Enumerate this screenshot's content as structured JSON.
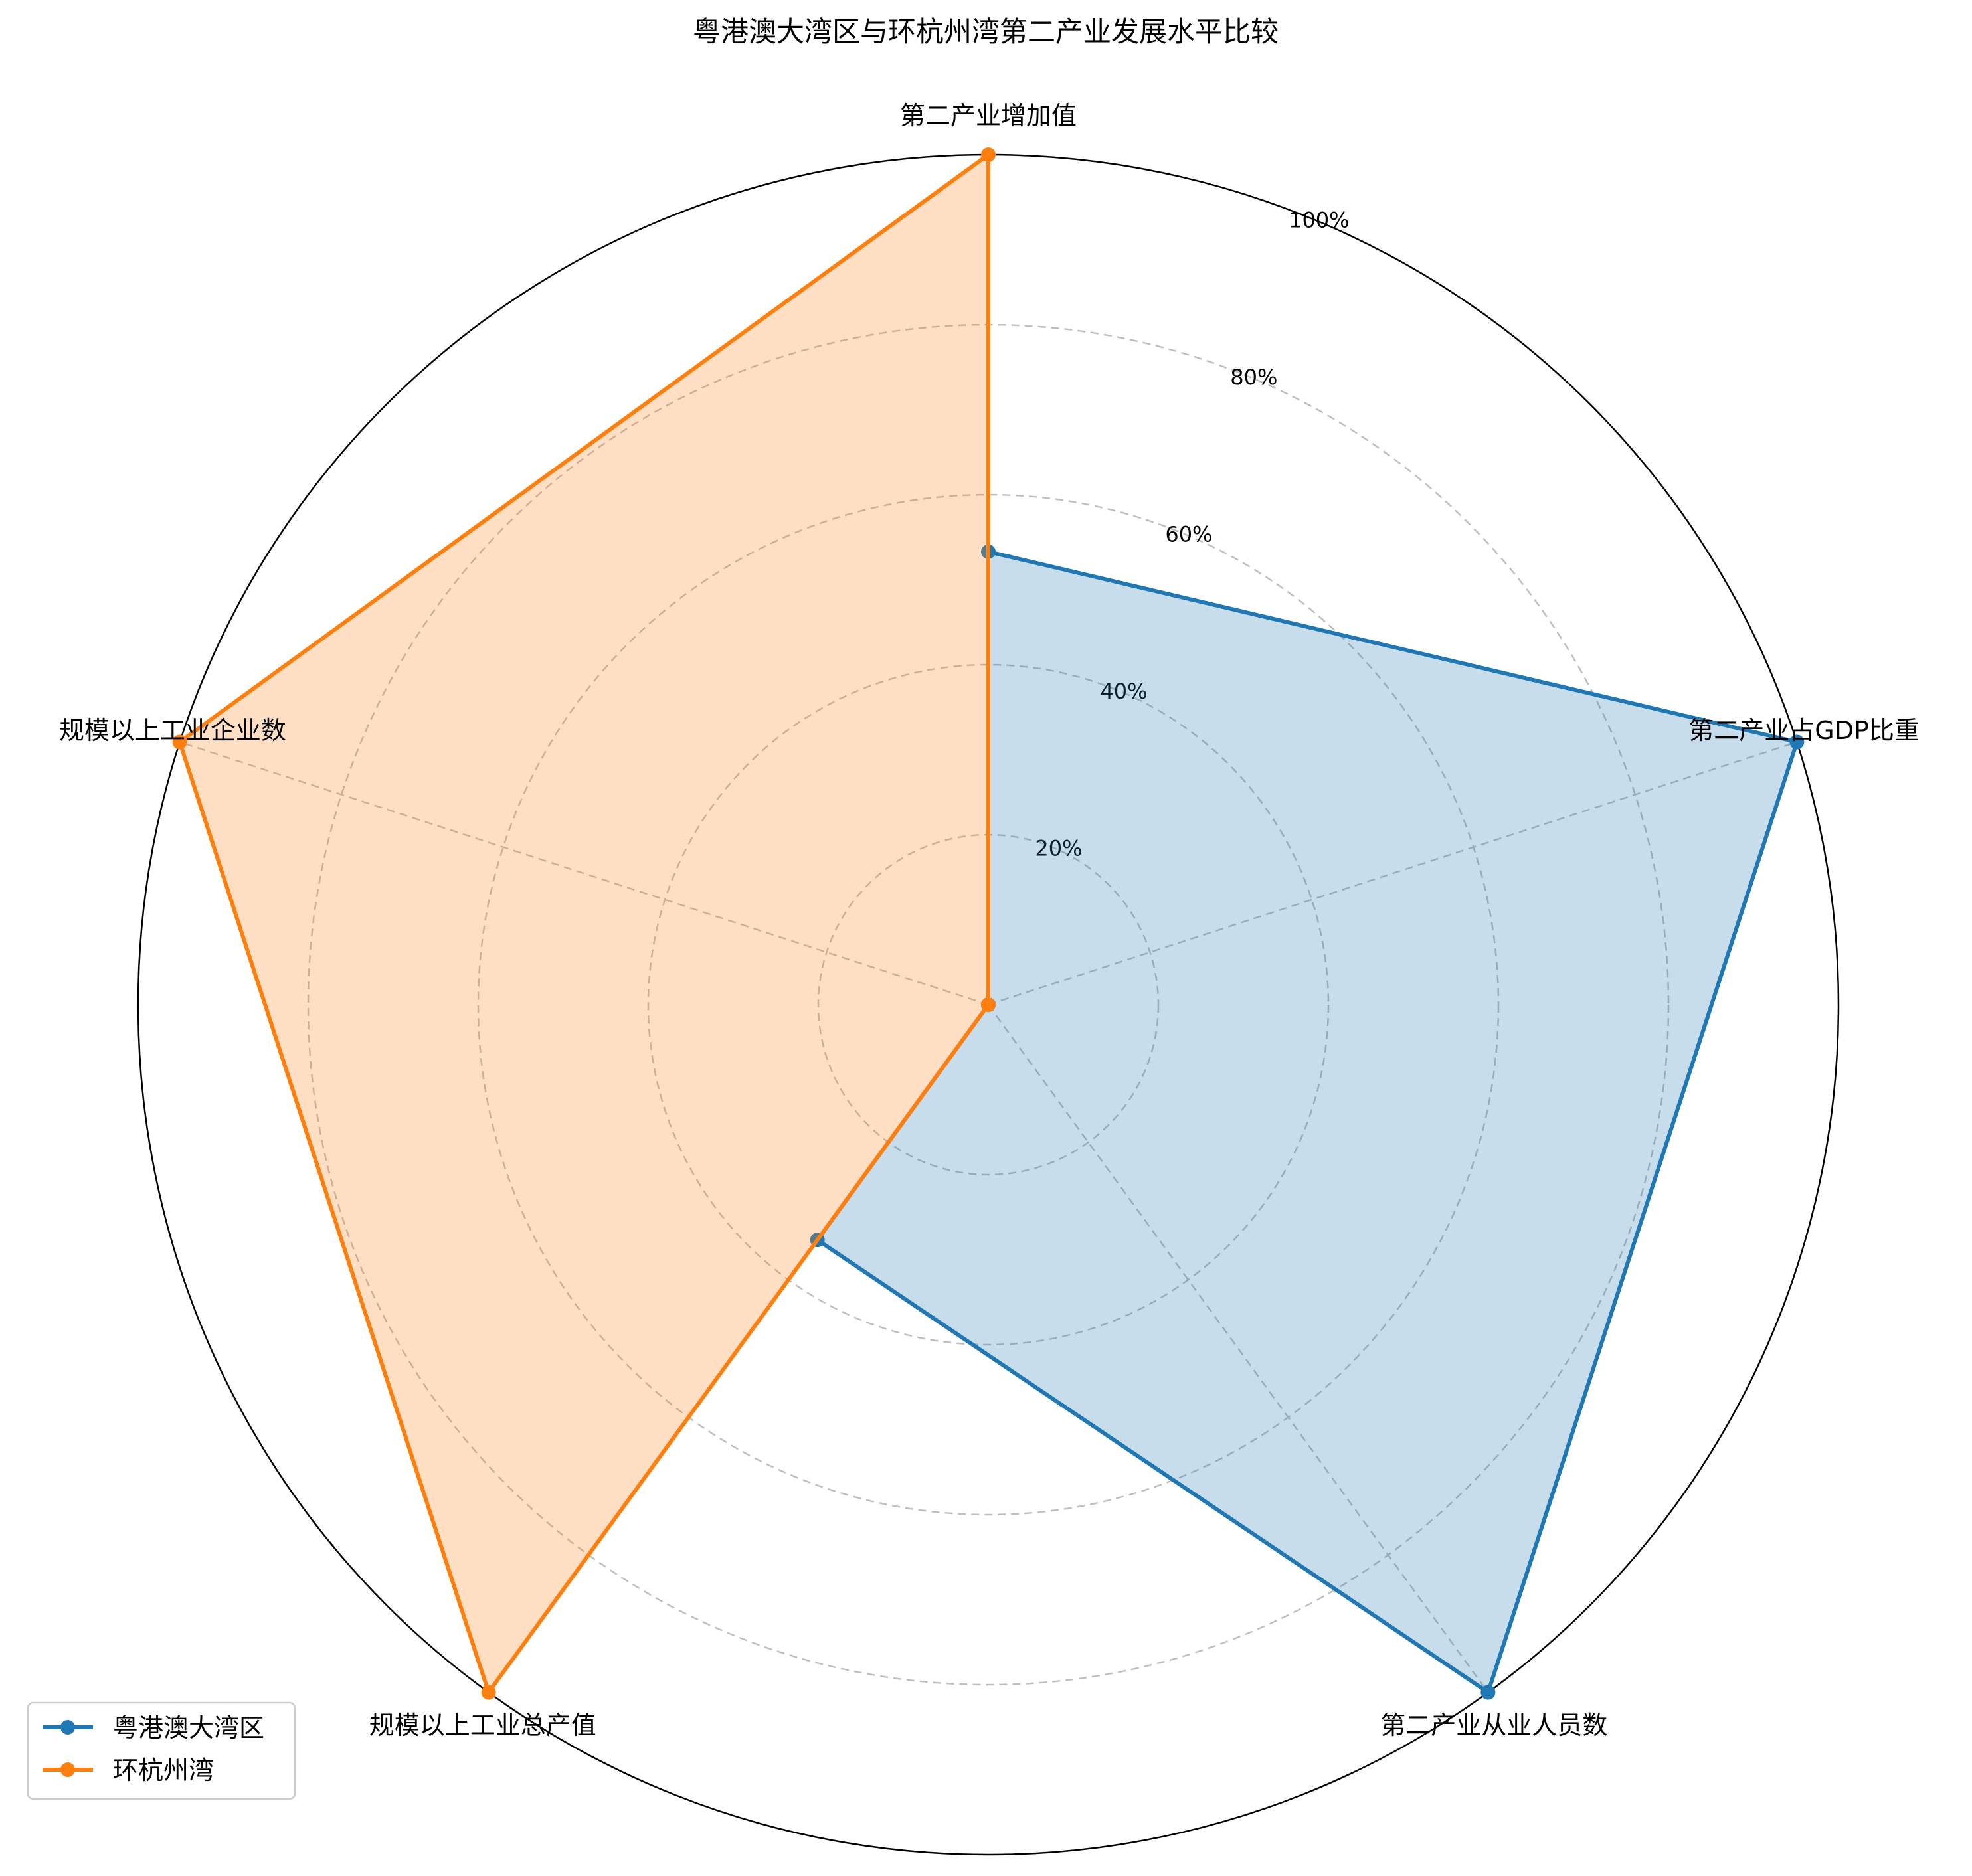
{
  "chart_data": {
    "type": "radar",
    "title": "粤港澳大湾区与环杭州湾第二产业发展水平比较",
    "categories": [
      "第二产业增加值",
      "第二产业占GDP比重",
      "第二产业从业人员数",
      "规模以上工业总产值",
      "规模以上工业企业数"
    ],
    "rlim": [
      0,
      100
    ],
    "r_ticks": [
      20,
      40,
      60,
      80,
      100
    ],
    "r_tick_labels": [
      "20%",
      "40%",
      "60%",
      "80%",
      "100%"
    ],
    "grid": true,
    "legend_position": "lower-left",
    "series": [
      {
        "name": "粤港澳大湾区",
        "color": "#1f77b4",
        "values": [
          53.3,
          100,
          100,
          34.2,
          0
        ]
      },
      {
        "name": "环杭州湾",
        "color": "#ff7f0e",
        "values": [
          100,
          0,
          0,
          100,
          100
        ]
      }
    ]
  }
}
